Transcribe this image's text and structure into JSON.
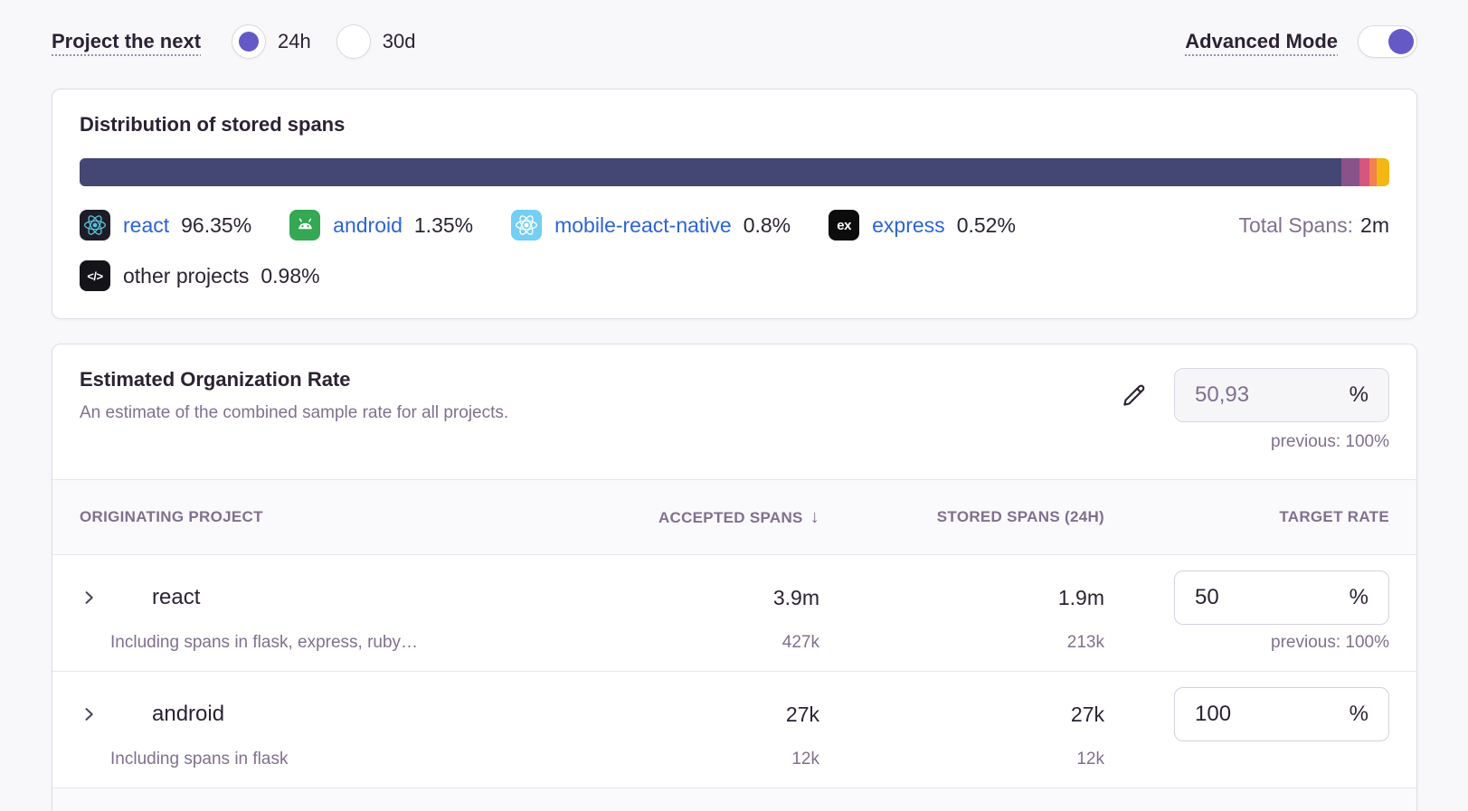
{
  "colors": {
    "accent": "#6559c8",
    "link": "#2c63d6",
    "muted": "#80708f",
    "text": "#2b2233"
  },
  "topbar": {
    "project_label": "Project the next",
    "period_options": [
      {
        "label": "24h",
        "selected": true
      },
      {
        "label": "30d",
        "selected": false
      }
    ],
    "advanced_mode": {
      "label": "Advanced Mode",
      "on": true
    }
  },
  "distribution": {
    "title": "Distribution of stored spans",
    "total_label": "Total Spans:",
    "total_value": "2m",
    "segments": [
      {
        "name": "react",
        "pct_label": "96.35%",
        "pct": 96.35,
        "color": "#444674",
        "icon": "react",
        "icon_bg": "#1e1c27",
        "icon_fg": "#58c4dc",
        "link": true,
        "row": 1
      },
      {
        "name": "android",
        "pct_label": "1.35%",
        "pct": 1.35,
        "color": "#895289",
        "icon": "android",
        "icon_bg": "#34a853",
        "icon_fg": "#ffffff",
        "link": true,
        "row": 1
      },
      {
        "name": "mobile-react-native",
        "pct_label": "0.8%",
        "pct": 0.8,
        "color": "#d6567f",
        "icon": "react",
        "icon_bg": "#74cff2",
        "icon_fg": "#ffffff",
        "link": true,
        "row": 1
      },
      {
        "name": "express",
        "pct_label": "0.52%",
        "pct": 0.52,
        "color": "#f38150",
        "icon": "express",
        "icon_bg": "#0c0c0d",
        "icon_fg": "#ffffff",
        "link": true,
        "row": 1
      },
      {
        "name": "other projects",
        "pct_label": "0.98%",
        "pct": 0.98,
        "color": "#f2b712",
        "icon": "code",
        "icon_bg": "#141318",
        "icon_fg": "#ffffff",
        "link": false,
        "row": 2
      }
    ]
  },
  "org_rate": {
    "title": "Estimated Organization Rate",
    "subtitle": "An estimate of the combined sample rate for all projects.",
    "value": "50,93",
    "unit": "%",
    "previous": "previous: 100%"
  },
  "table": {
    "columns": [
      {
        "label": "ORIGINATING PROJECT",
        "align": "left",
        "sorted": ""
      },
      {
        "label": "ACCEPTED SPANS",
        "align": "right",
        "sorted": "desc"
      },
      {
        "label": "STORED SPANS (24H)",
        "align": "right",
        "sorted": ""
      },
      {
        "label": "TARGET RATE",
        "align": "right",
        "sorted": ""
      }
    ],
    "rows": [
      {
        "project": "react",
        "icon": "react",
        "icon_bg": "#1e1c27",
        "icon_fg": "#58c4dc",
        "subtitle": "Including spans in flask, express, ruby…",
        "accepted": "3.9m",
        "accepted_sub": "427k",
        "stored": "1.9m",
        "stored_sub": "213k",
        "rate": "50",
        "unit": "%",
        "previous": "previous: 100%"
      },
      {
        "project": "android",
        "icon": "android",
        "icon_bg": "#34a853",
        "icon_fg": "#ffffff",
        "subtitle": "Including spans in flask",
        "accepted": "27k",
        "accepted_sub": "12k",
        "stored": "27k",
        "stored_sub": "12k",
        "rate": "100",
        "unit": "%",
        "previous": ""
      }
    ]
  }
}
